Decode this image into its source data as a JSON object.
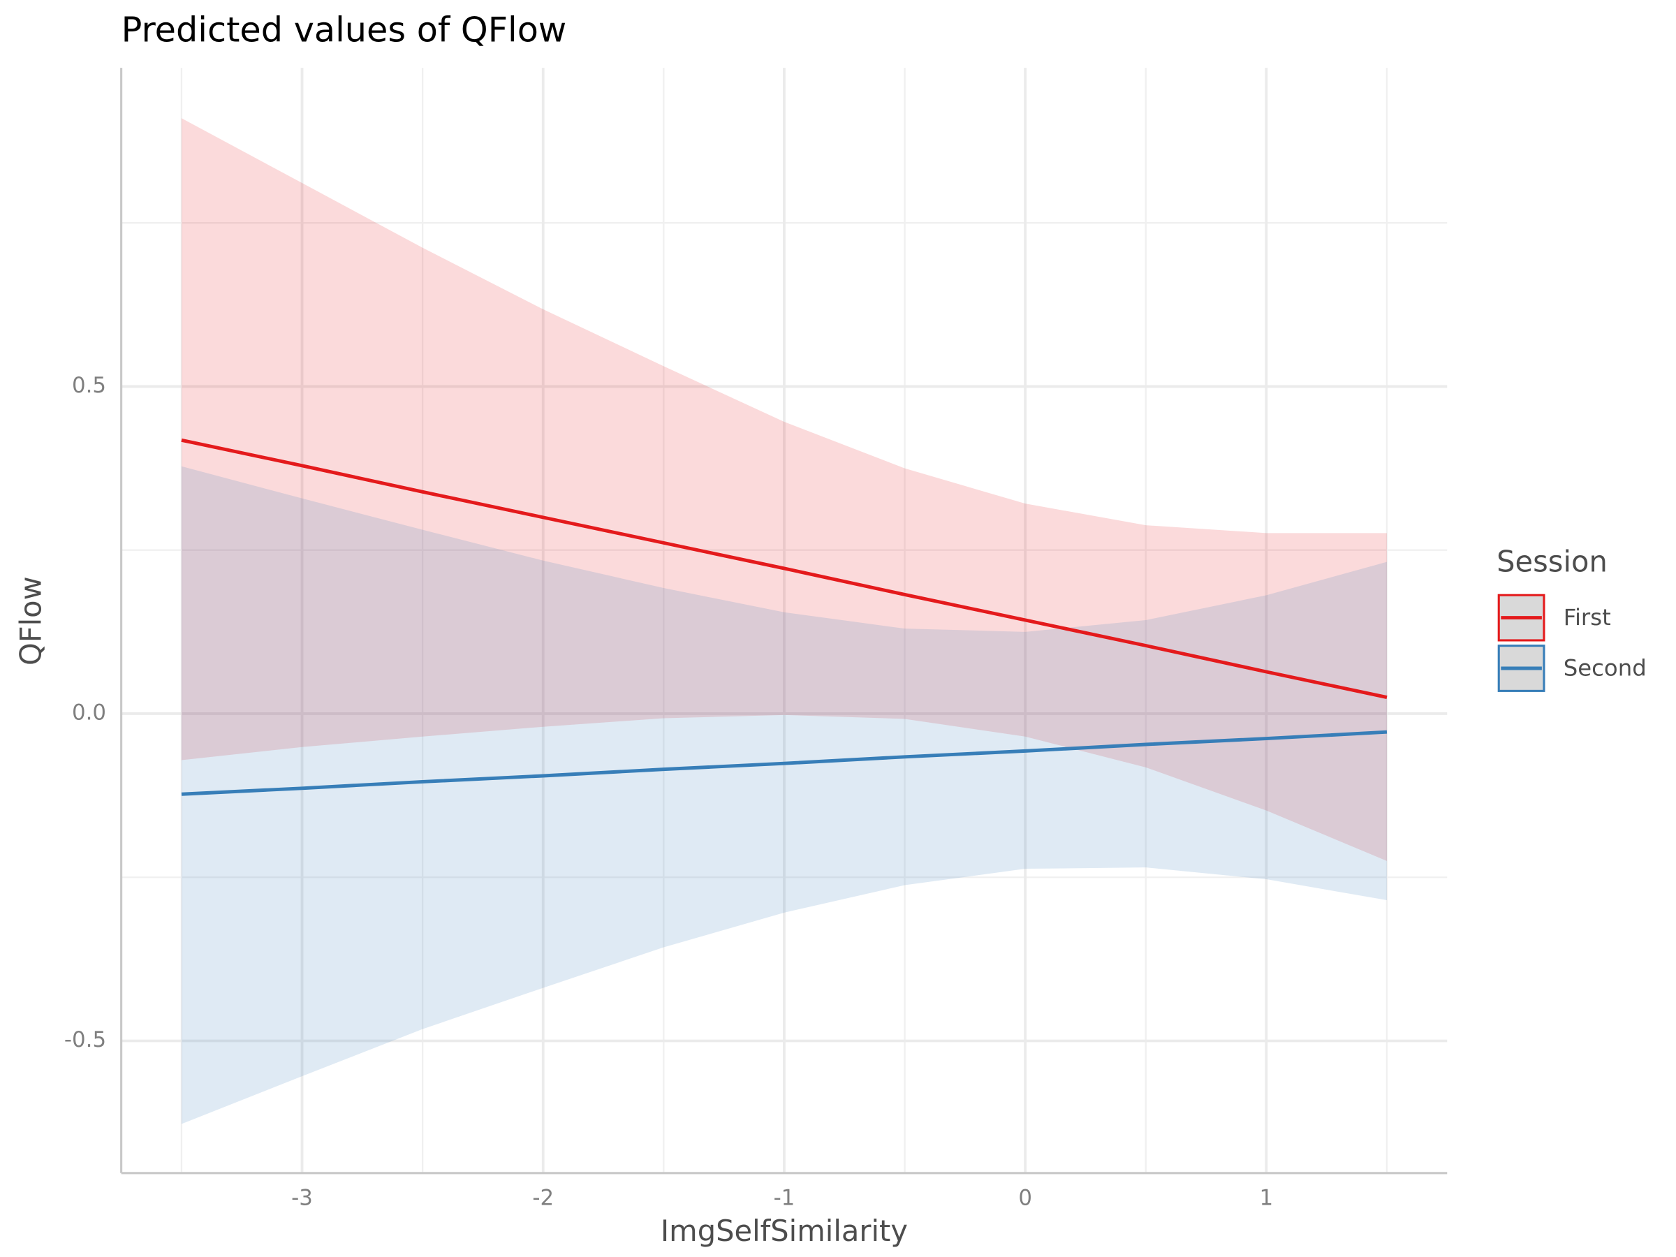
{
  "chart_data": {
    "type": "line",
    "title": "Predicted values of QFlow",
    "x_label": "ImgSelfSimilarity",
    "y_label": "QFlow",
    "legend_title": "Session",
    "x": [
      -3.5,
      -3,
      -2.5,
      -2,
      -1.5,
      -1,
      -0.5,
      0,
      0.5,
      1,
      1.5
    ],
    "series": [
      {
        "name": "First",
        "color": "#e41a1c",
        "values": [
          0.418,
          0.379,
          0.339,
          0.3,
          0.261,
          0.222,
          0.182,
          0.143,
          0.104,
          0.064,
          0.025
        ],
        "upper": [
          0.91,
          0.811,
          0.712,
          0.618,
          0.531,
          0.446,
          0.375,
          0.321,
          0.288,
          0.276,
          0.276
        ],
        "lower": [
          -0.071,
          -0.051,
          -0.035,
          -0.02,
          -0.007,
          -0.002,
          -0.008,
          -0.035,
          -0.082,
          -0.148,
          -0.225
        ]
      },
      {
        "name": "Second",
        "color": "#377eb8",
        "values": [
          -0.123,
          -0.114,
          -0.104,
          -0.095,
          -0.085,
          -0.076,
          -0.066,
          -0.057,
          -0.047,
          -0.038,
          -0.028
        ],
        "upper": [
          0.378,
          0.329,
          0.281,
          0.234,
          0.192,
          0.155,
          0.13,
          0.125,
          0.143,
          0.181,
          0.232
        ],
        "lower": [
          -0.627,
          -0.554,
          -0.482,
          -0.419,
          -0.357,
          -0.304,
          -0.262,
          -0.237,
          -0.235,
          -0.253,
          -0.285
        ]
      }
    ],
    "xlim": [
      -3.75,
      1.75
    ],
    "ylim": [
      -0.702,
      0.987
    ],
    "xticks": [
      -3,
      -2,
      -1,
      0,
      1
    ],
    "yticks": [
      -0.5,
      {
        "value": 0,
        "label": "0.0"
      },
      0.5
    ],
    "grid": true
  }
}
